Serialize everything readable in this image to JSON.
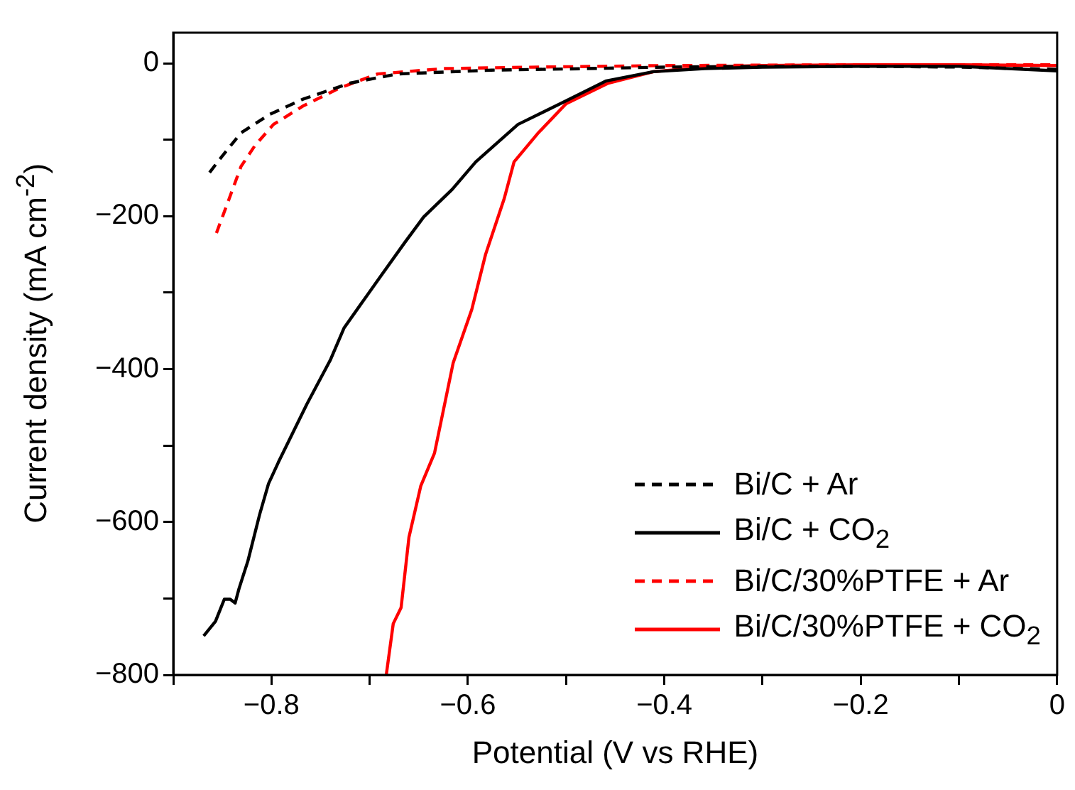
{
  "chart_data": {
    "type": "line",
    "xlabel": "Potential (V vs RHE)",
    "ylabel": "Current density (mA cm$^{-2}$)",
    "xlim": [
      -0.9,
      0
    ],
    "ylim": [
      -800,
      40
    ],
    "xticks": [
      {
        "value": -0.9,
        "label": null
      },
      {
        "value": -0.8,
        "label": "−0.8"
      },
      {
        "value": -0.7,
        "label": null
      },
      {
        "value": -0.6,
        "label": "−0.6"
      },
      {
        "value": -0.5,
        "label": null
      },
      {
        "value": -0.4,
        "label": "−0.4"
      },
      {
        "value": -0.3,
        "label": null
      },
      {
        "value": -0.2,
        "label": "−0.2"
      },
      {
        "value": -0.1,
        "label": null
      },
      0
    ],
    "yticks": [
      {
        "value": -800,
        "label": "−800"
      },
      {
        "value": -700,
        "label": null
      },
      {
        "value": -600,
        "label": "−600"
      },
      {
        "value": -500,
        "label": null
      },
      {
        "value": -400,
        "label": "−400"
      },
      {
        "value": -300,
        "label": null
      },
      {
        "value": -200,
        "label": "−200"
      },
      {
        "value": -100,
        "label": null
      },
      0
    ],
    "grid": false,
    "legend": "bottom right",
    "marker": "none",
    "series": [
      {
        "name": "Bi/C + Ar",
        "color": "#000000",
        "line_style": "dashed",
        "x": [
          -0.863,
          -0.853,
          -0.831,
          -0.802,
          -0.768,
          -0.72,
          -0.672,
          -0.576,
          -0.48,
          -0.4,
          -0.3,
          -0.2,
          -0.1,
          0
        ],
        "values": [
          -143,
          -126,
          -91,
          -67,
          -47,
          -26,
          -14,
          -9,
          -7,
          -5,
          -4,
          -4,
          -5,
          -8
        ]
      },
      {
        "name": "Bi/C + CO$_{2}$",
        "color": "#000000",
        "line_style": "solid",
        "x": [
          -0.869,
          -0.857,
          -0.848,
          -0.842,
          -0.837,
          -0.833,
          -0.824,
          -0.812,
          -0.803,
          -0.793,
          -0.764,
          -0.74,
          -0.726,
          -0.688,
          -0.664,
          -0.645,
          -0.616,
          -0.592,
          -0.549,
          -0.506,
          -0.459,
          -0.411,
          -0.359,
          -0.3,
          -0.2,
          -0.1,
          0
        ],
        "values": [
          -749,
          -730,
          -701,
          -701,
          -706,
          -687,
          -651,
          -590,
          -550,
          -522,
          -446,
          -388,
          -346,
          -277,
          -234,
          -201,
          -165,
          -129,
          -80,
          -53,
          -23,
          -11,
          -7,
          -5,
          -4,
          -4,
          -10
        ]
      },
      {
        "name": "Bi/C/30%PTFE + Ar",
        "color": "#ff0000",
        "line_style": "dashed",
        "x": [
          -0.856,
          -0.843,
          -0.831,
          -0.817,
          -0.798,
          -0.768,
          -0.73,
          -0.692,
          -0.625,
          -0.529,
          -0.4,
          -0.2,
          0
        ],
        "values": [
          -222,
          -177,
          -135,
          -108,
          -80,
          -56,
          -32,
          -14,
          -7,
          -5,
          -3,
          -2,
          -2
        ]
      },
      {
        "name": "Bi/C/30%PTFE + CO$_{2}$",
        "color": "#ff0000",
        "line_style": "solid",
        "x": [
          -0.683,
          -0.676,
          -0.668,
          -0.66,
          -0.648,
          -0.634,
          -0.615,
          -0.596,
          -0.582,
          -0.563,
          -0.553,
          -0.529,
          -0.5,
          -0.457,
          -0.411,
          -0.359,
          -0.3,
          -0.2,
          -0.1,
          0
        ],
        "values": [
          -799,
          -733,
          -712,
          -620,
          -553,
          -510,
          -392,
          -322,
          -250,
          -177,
          -129,
          -92,
          -53,
          -26,
          -11,
          -5,
          -3,
          -2,
          -2,
          -3
        ]
      }
    ]
  }
}
